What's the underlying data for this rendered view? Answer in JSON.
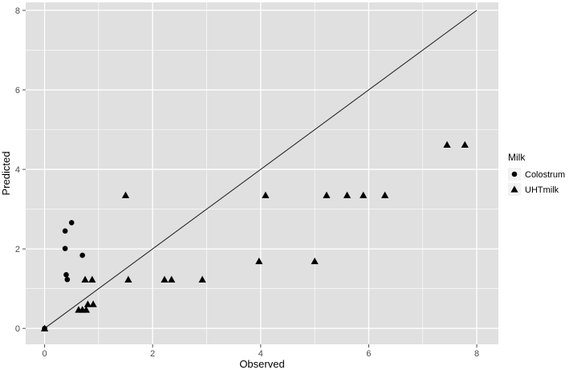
{
  "chart_data": {
    "type": "scatter",
    "xlabel": "Observed",
    "ylabel": "Predicted",
    "xlim": [
      -0.35,
      8.4
    ],
    "ylim": [
      -0.4,
      8.2
    ],
    "x_ticks": [
      0,
      2,
      4,
      6,
      8
    ],
    "y_ticks": [
      0,
      2,
      4,
      6,
      8
    ],
    "grid": true,
    "legend_position": "right",
    "legend_title": "Milk",
    "reference_line": {
      "from": [
        0,
        0
      ],
      "to": [
        8,
        8
      ]
    },
    "series": [
      {
        "name": "Colostrum",
        "marker": "circle",
        "points": [
          [
            0.0,
            0.0
          ],
          [
            0.38,
            2.45
          ],
          [
            0.38,
            2.01
          ],
          [
            0.4,
            1.35
          ],
          [
            0.42,
            1.23
          ],
          [
            0.5,
            2.66
          ],
          [
            0.7,
            1.84
          ]
        ]
      },
      {
        "name": "UHTmilk",
        "marker": "triangle",
        "points": [
          [
            0.0,
            0.0
          ],
          [
            0.63,
            0.47
          ],
          [
            0.7,
            0.47
          ],
          [
            0.77,
            0.47
          ],
          [
            0.8,
            0.61
          ],
          [
            0.9,
            0.61
          ],
          [
            0.75,
            1.23
          ],
          [
            0.88,
            1.23
          ],
          [
            1.5,
            3.35
          ],
          [
            1.55,
            1.23
          ],
          [
            2.22,
            1.23
          ],
          [
            2.35,
            1.23
          ],
          [
            2.92,
            1.23
          ],
          [
            3.97,
            1.69
          ],
          [
            4.09,
            3.35
          ],
          [
            5.0,
            1.69
          ],
          [
            5.22,
            3.35
          ],
          [
            5.6,
            3.35
          ],
          [
            5.9,
            3.35
          ],
          [
            6.3,
            3.35
          ],
          [
            7.45,
            4.62
          ],
          [
            7.78,
            4.62
          ]
        ]
      }
    ]
  },
  "colors": {
    "panel_background": "#e0e0e0",
    "grid_major": "#ffffff",
    "points": "#000000",
    "reference_line": "#1a1a1a"
  }
}
